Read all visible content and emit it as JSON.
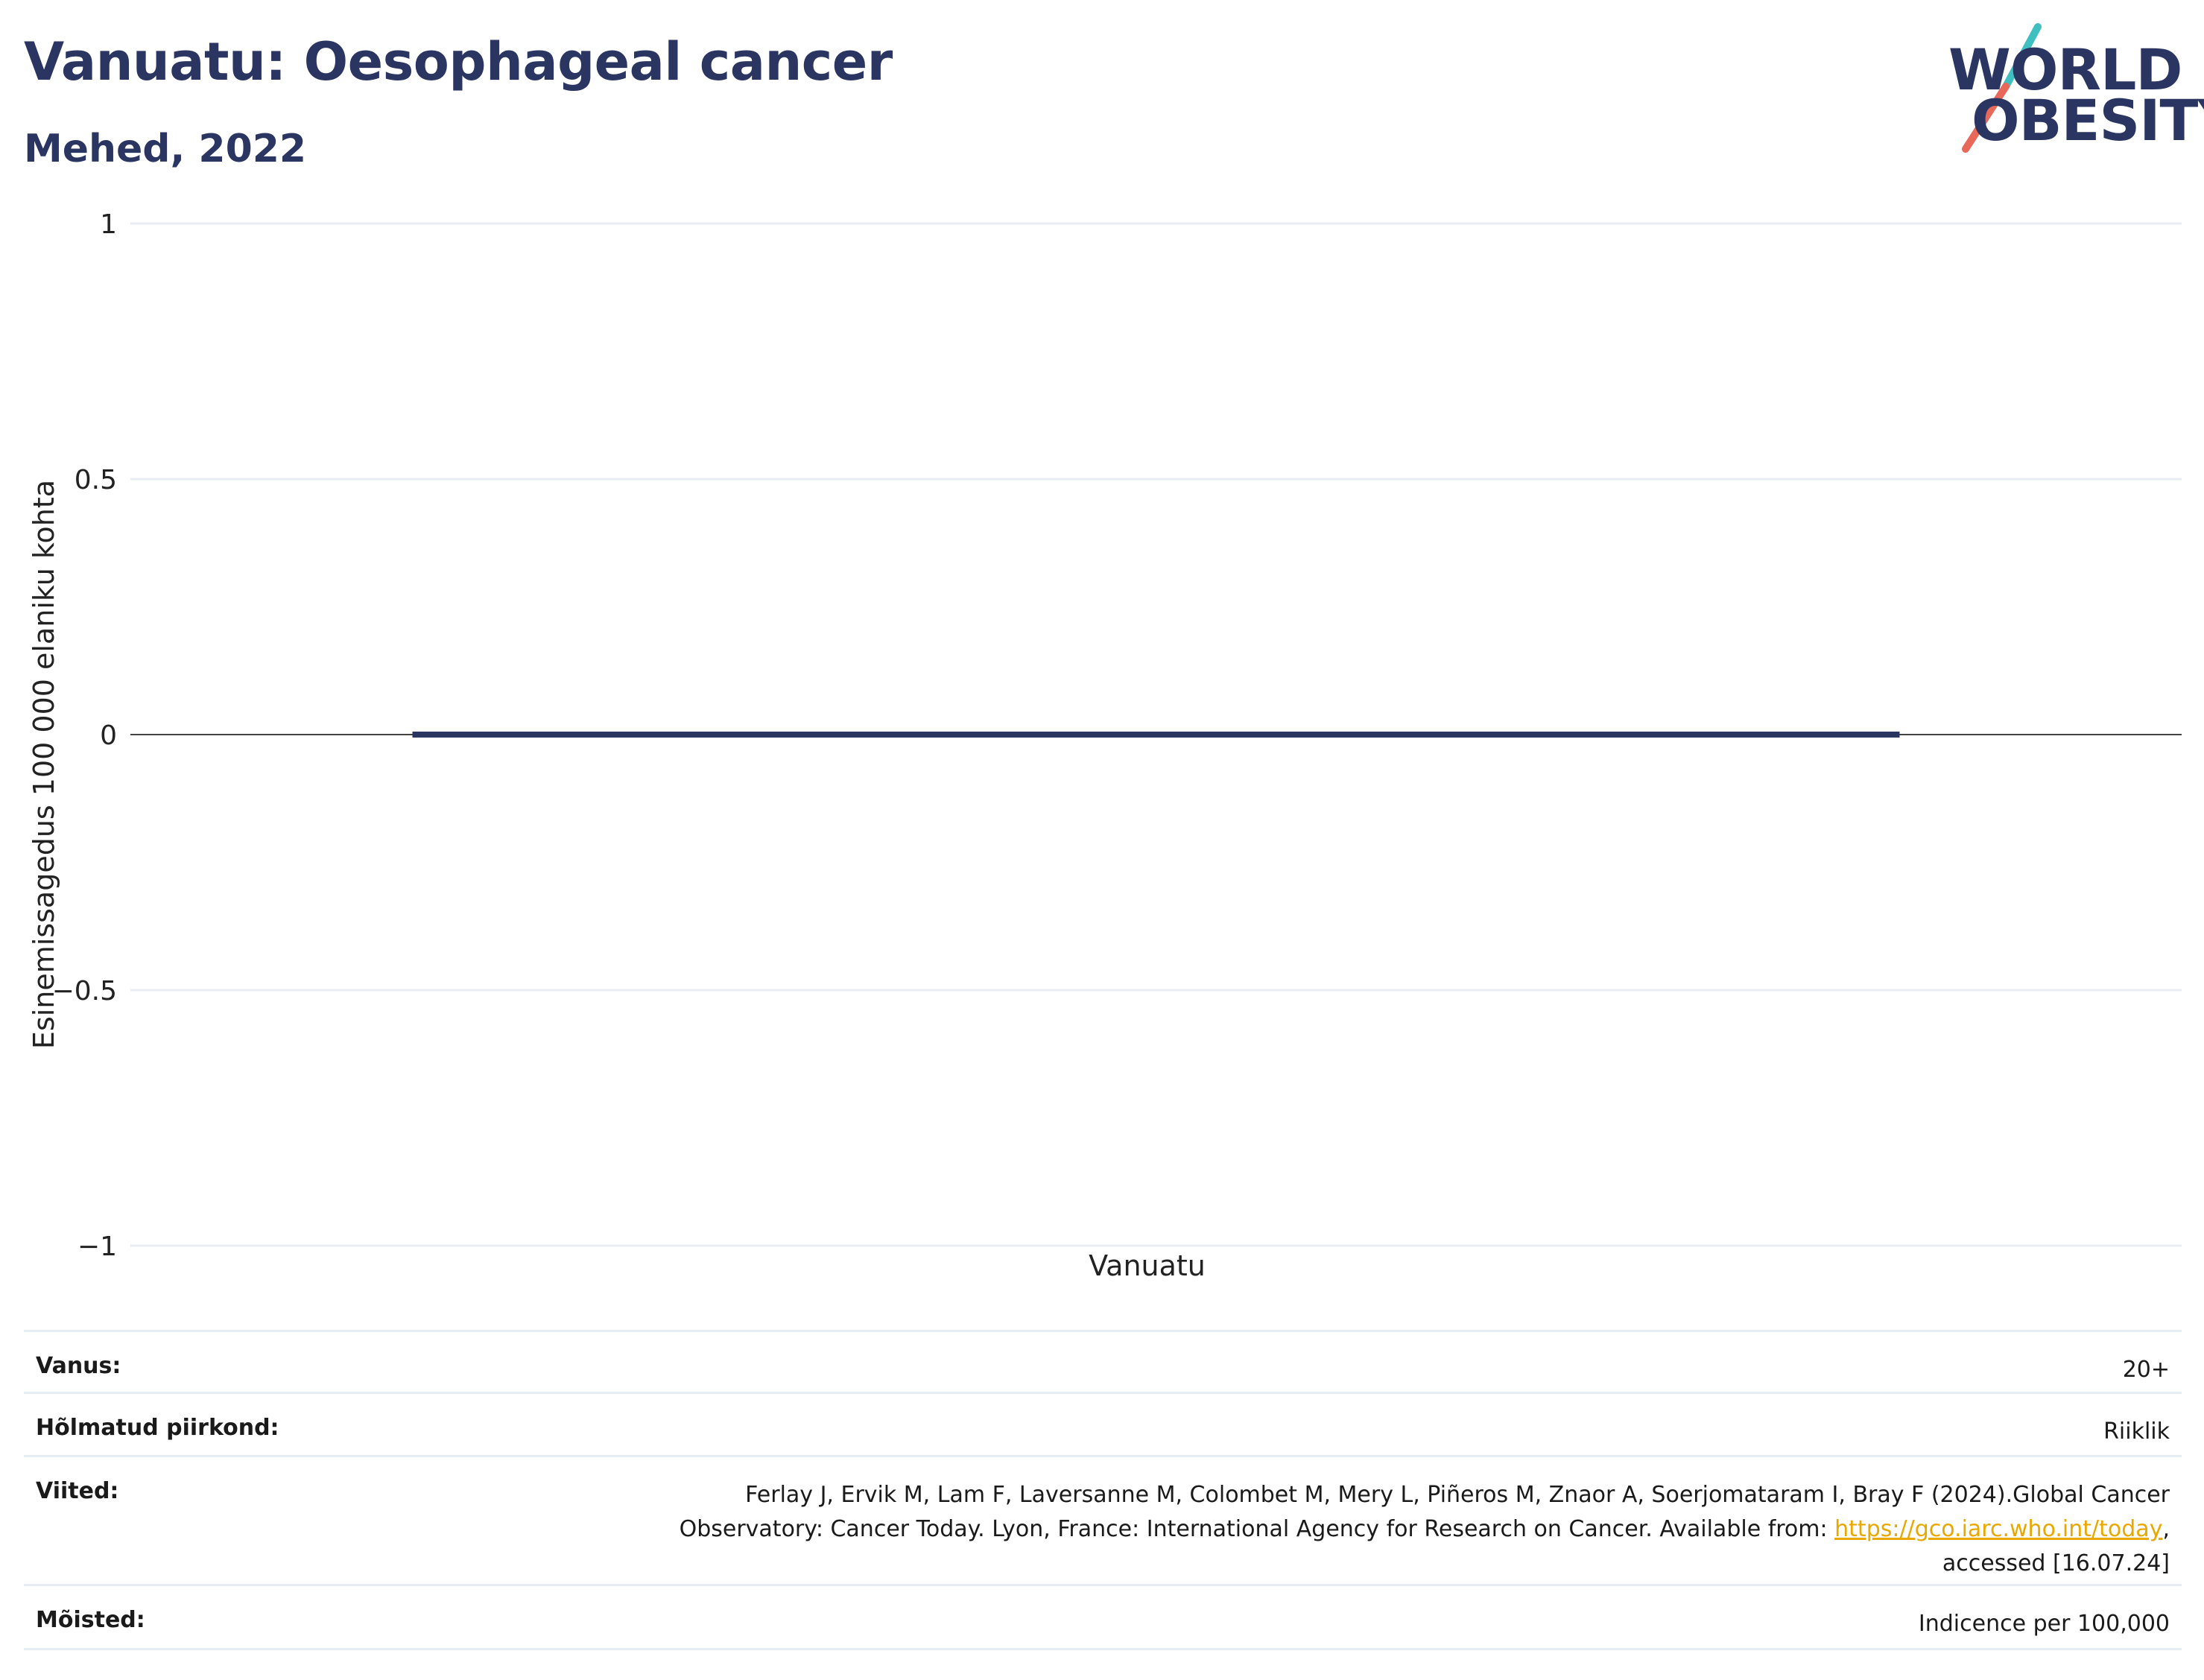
{
  "header": {
    "title": "Vanuatu: Oesophageal cancer",
    "subtitle": "Mehed, 2022"
  },
  "logo": {
    "line1": "WORLD",
    "line2": "OBESITY",
    "accent_colors": [
      "#3fbfbf",
      "#e8685a"
    ]
  },
  "chart_data": {
    "type": "bar",
    "categories": [
      "Vanuatu"
    ],
    "series": [
      {
        "values": [
          0
        ]
      }
    ],
    "xlabel": "Vanuatu",
    "ylabel": "Esinemissagedus 100 000 elaniku kohta",
    "ylim": [
      -1,
      1
    ],
    "y_ticks": [
      1,
      0.5,
      0,
      -0.5,
      -1
    ],
    "y_tick_labels": [
      "1",
      "0.5",
      "0",
      "−0.5",
      "−1"
    ],
    "grid": true,
    "legend": "none",
    "bar_color": "#2b3561"
  },
  "meta": {
    "age_label": "Vanus:",
    "age_value": "20+",
    "area_label": "Hõlmatud piirkond:",
    "area_value": "Riiklik",
    "refs_label": "Viited:",
    "refs_line1": "Ferlay J, Ervik M, Lam F, Laversanne M, Colombet M, Mery L, Piñeros M, Znaor A, Soerjomataram I, Bray F (2024).Global Cancer",
    "refs_line2_pre": "Observatory: Cancer Today. Lyon, France: International Agency for Research on Cancer. Available from: ",
    "refs_link": "https://gco.iarc.who.int/today",
    "refs_line2_post": ",",
    "refs_line3": "accessed [16.07.24]",
    "def_label": "Mõisted:",
    "def_value": "Indicence per 100,000"
  }
}
